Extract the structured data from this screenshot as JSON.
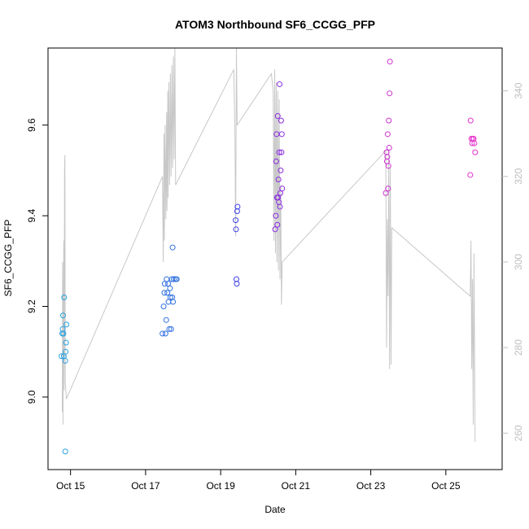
{
  "chart_data": {
    "type": "scatter",
    "title": "ATOM3 Northbound SF6_CCGG_PFP",
    "xlabel": "Date",
    "ylabel": "SF6_CCGG_PFP",
    "x_unit": "days (October)",
    "xlim": [
      14.4,
      26.5
    ],
    "ylim": [
      8.84,
      9.77
    ],
    "y2lim": [
      251.5,
      350
    ],
    "x_ticks": [
      {
        "value": 15,
        "label": "Oct 15"
      },
      {
        "value": 17,
        "label": "Oct 17"
      },
      {
        "value": 19,
        "label": "Oct 19"
      },
      {
        "value": 21,
        "label": "Oct 21"
      },
      {
        "value": 23,
        "label": "Oct 23"
      },
      {
        "value": 25,
        "label": "Oct 25"
      }
    ],
    "y_ticks": [
      {
        "value": 9.0,
        "label": "9.0"
      },
      {
        "value": 9.2,
        "label": "9.2"
      },
      {
        "value": 9.4,
        "label": "9.4"
      },
      {
        "value": 9.6,
        "label": "9.6"
      }
    ],
    "y2_ticks": [
      {
        "value": 260,
        "label": "260"
      },
      {
        "value": 280,
        "label": "280"
      },
      {
        "value": 300,
        "label": "300"
      },
      {
        "value": 320,
        "label": "320"
      },
      {
        "value": 340,
        "label": "340"
      }
    ],
    "grid": false,
    "colors": {
      "oct14": "#29a3e0",
      "oct17": "#2f6fe0",
      "oct19": "#3b3fe8",
      "oct20": "#8a2be2",
      "oct23": "#cc33cc",
      "oct25": "#e633cc",
      "secondary_line": "#c8c8c8"
    },
    "points": [
      {
        "x": 14.76,
        "y": 9.09,
        "color": "#29a3e0"
      },
      {
        "x": 14.78,
        "y": 9.14,
        "color": "#29a3e0"
      },
      {
        "x": 14.79,
        "y": 9.15,
        "color": "#29a3e0"
      },
      {
        "x": 14.8,
        "y": 9.18,
        "color": "#29a3e0"
      },
      {
        "x": 14.81,
        "y": 9.14,
        "color": "#29a3e0"
      },
      {
        "x": 14.82,
        "y": 9.09,
        "color": "#29a3e0"
      },
      {
        "x": 14.83,
        "y": 9.22,
        "color": "#29a3e0"
      },
      {
        "x": 14.86,
        "y": 9.08,
        "color": "#29a3e0"
      },
      {
        "x": 14.87,
        "y": 9.1,
        "color": "#29a3e0"
      },
      {
        "x": 14.88,
        "y": 9.12,
        "color": "#29a3e0"
      },
      {
        "x": 14.89,
        "y": 9.16,
        "color": "#29a3e0"
      },
      {
        "x": 14.86,
        "y": 8.88,
        "color": "#29a3e0"
      },
      {
        "x": 17.45,
        "y": 9.14,
        "color": "#2f6fe0"
      },
      {
        "x": 17.48,
        "y": 9.2,
        "color": "#2f6fe0"
      },
      {
        "x": 17.5,
        "y": 9.23,
        "color": "#2f6fe0"
      },
      {
        "x": 17.51,
        "y": 9.25,
        "color": "#2f6fe0"
      },
      {
        "x": 17.53,
        "y": 9.14,
        "color": "#2f6fe0"
      },
      {
        "x": 17.55,
        "y": 9.17,
        "color": "#2f6fe0"
      },
      {
        "x": 17.56,
        "y": 9.26,
        "color": "#2f6fe0"
      },
      {
        "x": 17.58,
        "y": 9.23,
        "color": "#2f6fe0"
      },
      {
        "x": 17.6,
        "y": 9.25,
        "color": "#2f6fe0"
      },
      {
        "x": 17.61,
        "y": 9.21,
        "color": "#2f6fe0"
      },
      {
        "x": 17.63,
        "y": 9.15,
        "color": "#2f6fe0"
      },
      {
        "x": 17.65,
        "y": 9.24,
        "color": "#2f6fe0"
      },
      {
        "x": 17.66,
        "y": 9.22,
        "color": "#2f6fe0"
      },
      {
        "x": 17.68,
        "y": 9.15,
        "color": "#2f6fe0"
      },
      {
        "x": 17.7,
        "y": 9.26,
        "color": "#2f6fe0"
      },
      {
        "x": 17.71,
        "y": 9.22,
        "color": "#2f6fe0"
      },
      {
        "x": 17.72,
        "y": 9.33,
        "color": "#2f6fe0"
      },
      {
        "x": 17.73,
        "y": 9.21,
        "color": "#2f6fe0"
      },
      {
        "x": 17.75,
        "y": 9.26,
        "color": "#2f6fe0"
      },
      {
        "x": 17.8,
        "y": 9.26,
        "color": "#2f6fe0"
      },
      {
        "x": 17.83,
        "y": 9.26,
        "color": "#2f6fe0"
      },
      {
        "x": 19.4,
        "y": 9.39,
        "color": "#3b3fe8"
      },
      {
        "x": 19.41,
        "y": 9.37,
        "color": "#3b3fe8"
      },
      {
        "x": 19.42,
        "y": 9.26,
        "color": "#3b3fe8"
      },
      {
        "x": 19.43,
        "y": 9.25,
        "color": "#3b3fe8"
      },
      {
        "x": 19.44,
        "y": 9.41,
        "color": "#3b3fe8"
      },
      {
        "x": 19.45,
        "y": 9.42,
        "color": "#3b3fe8"
      },
      {
        "x": 20.45,
        "y": 9.37,
        "color": "#8a2be2"
      },
      {
        "x": 20.47,
        "y": 9.4,
        "color": "#8a2be2"
      },
      {
        "x": 20.48,
        "y": 9.52,
        "color": "#8a2be2"
      },
      {
        "x": 20.49,
        "y": 9.58,
        "color": "#8a2be2"
      },
      {
        "x": 20.5,
        "y": 9.44,
        "color": "#8a2be2"
      },
      {
        "x": 20.51,
        "y": 9.38,
        "color": "#8a2be2"
      },
      {
        "x": 20.52,
        "y": 9.62,
        "color": "#8a2be2"
      },
      {
        "x": 20.53,
        "y": 9.44,
        "color": "#8a2be2"
      },
      {
        "x": 20.54,
        "y": 9.48,
        "color": "#8a2be2"
      },
      {
        "x": 20.55,
        "y": 9.43,
        "color": "#8a2be2"
      },
      {
        "x": 20.56,
        "y": 9.54,
        "color": "#8a2be2"
      },
      {
        "x": 20.57,
        "y": 9.69,
        "color": "#8a2be2"
      },
      {
        "x": 20.58,
        "y": 9.42,
        "color": "#8a2be2"
      },
      {
        "x": 20.59,
        "y": 9.45,
        "color": "#8a2be2"
      },
      {
        "x": 20.6,
        "y": 9.5,
        "color": "#8a2be2"
      },
      {
        "x": 20.61,
        "y": 9.61,
        "color": "#8a2be2"
      },
      {
        "x": 20.62,
        "y": 9.54,
        "color": "#8a2be2"
      },
      {
        "x": 20.63,
        "y": 9.58,
        "color": "#8a2be2"
      },
      {
        "x": 20.64,
        "y": 9.46,
        "color": "#8a2be2"
      },
      {
        "x": 23.4,
        "y": 9.45,
        "color": "#cc33cc"
      },
      {
        "x": 23.42,
        "y": 9.54,
        "color": "#cc33cc"
      },
      {
        "x": 23.43,
        "y": 9.52,
        "color": "#cc33cc"
      },
      {
        "x": 23.44,
        "y": 9.53,
        "color": "#cc33cc"
      },
      {
        "x": 23.45,
        "y": 9.58,
        "color": "#cc33cc"
      },
      {
        "x": 23.46,
        "y": 9.46,
        "color": "#cc33cc"
      },
      {
        "x": 23.47,
        "y": 9.51,
        "color": "#cc33cc"
      },
      {
        "x": 23.48,
        "y": 9.61,
        "color": "#cc33cc"
      },
      {
        "x": 23.49,
        "y": 9.55,
        "color": "#cc33cc"
      },
      {
        "x": 23.5,
        "y": 9.67,
        "color": "#cc33cc"
      },
      {
        "x": 23.51,
        "y": 9.74,
        "color": "#cc33cc"
      },
      {
        "x": 25.65,
        "y": 9.49,
        "color": "#e633cc"
      },
      {
        "x": 25.66,
        "y": 9.61,
        "color": "#e633cc"
      },
      {
        "x": 25.68,
        "y": 9.57,
        "color": "#e633cc"
      },
      {
        "x": 25.7,
        "y": 9.56,
        "color": "#e633cc"
      },
      {
        "x": 25.72,
        "y": 9.57,
        "color": "#e633cc"
      },
      {
        "x": 25.74,
        "y": 9.57,
        "color": "#e633cc"
      },
      {
        "x": 25.76,
        "y": 9.56,
        "color": "#e633cc"
      },
      {
        "x": 25.78,
        "y": 9.54,
        "color": "#e633cc"
      }
    ],
    "secondary_line": [
      [
        14.78,
        265
      ],
      [
        14.79,
        300
      ],
      [
        14.8,
        262
      ],
      [
        14.81,
        290
      ],
      [
        14.82,
        305
      ],
      [
        14.83,
        270
      ],
      [
        14.84,
        322
      ],
      [
        14.85,
        325
      ],
      [
        14.86,
        272
      ],
      [
        14.89,
        268
      ],
      [
        17.45,
        320
      ],
      [
        17.47,
        300
      ],
      [
        17.49,
        330
      ],
      [
        17.5,
        305
      ],
      [
        17.52,
        332
      ],
      [
        17.54,
        310
      ],
      [
        17.56,
        335
      ],
      [
        17.57,
        312
      ],
      [
        17.59,
        340
      ],
      [
        17.6,
        315
      ],
      [
        17.62,
        342
      ],
      [
        17.64,
        318
      ],
      [
        17.66,
        344
      ],
      [
        17.68,
        320
      ],
      [
        17.7,
        346
      ],
      [
        17.72,
        322
      ],
      [
        17.74,
        348
      ],
      [
        17.76,
        324
      ],
      [
        17.78,
        350
      ],
      [
        17.8,
        318
      ],
      [
        19.35,
        345
      ],
      [
        19.38,
        330
      ],
      [
        19.4,
        306
      ],
      [
        19.42,
        350
      ],
      [
        19.44,
        332
      ],
      [
        20.35,
        344
      ],
      [
        20.4,
        340
      ],
      [
        20.42,
        305
      ],
      [
        20.44,
        345
      ],
      [
        20.46,
        302
      ],
      [
        20.48,
        342
      ],
      [
        20.5,
        300
      ],
      [
        20.52,
        340
      ],
      [
        20.54,
        298
      ],
      [
        20.56,
        338
      ],
      [
        20.58,
        296
      ],
      [
        20.6,
        318
      ],
      [
        20.62,
        290
      ],
      [
        20.64,
        300
      ],
      [
        23.4,
        326
      ],
      [
        23.42,
        280
      ],
      [
        23.44,
        310
      ],
      [
        23.46,
        292
      ],
      [
        23.48,
        326
      ],
      [
        23.5,
        275
      ],
      [
        23.52,
        322
      ],
      [
        23.54,
        276
      ],
      [
        23.56,
        308
      ],
      [
        25.65,
        292
      ],
      [
        25.67,
        305
      ],
      [
        25.69,
        275
      ],
      [
        25.71,
        296
      ],
      [
        25.73,
        262
      ],
      [
        25.75,
        302
      ],
      [
        25.78,
        258
      ]
    ]
  }
}
